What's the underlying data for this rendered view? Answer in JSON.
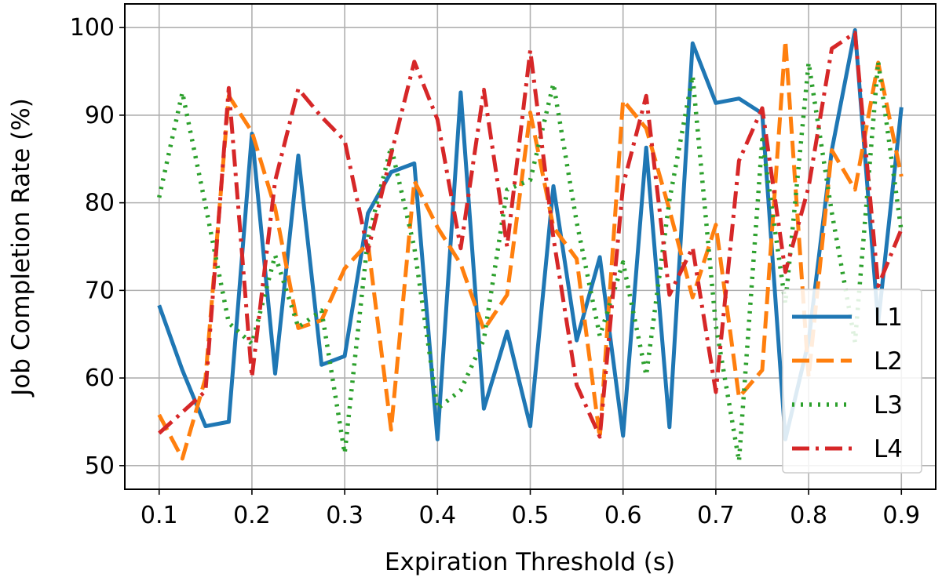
{
  "chart_data": {
    "type": "line",
    "xlabel": "Expiration Threshold (s)",
    "ylabel": "Job Completion Rate (%)",
    "xlim": [
      0.063,
      0.937
    ],
    "ylim": [
      47.3,
      102.7
    ],
    "xticks": [
      0.1,
      0.2,
      0.3,
      0.4,
      0.5,
      0.6,
      0.7,
      0.8,
      0.9
    ],
    "xtick_labels": [
      "0.1",
      "0.2",
      "0.3",
      "0.4",
      "0.5",
      "0.6",
      "0.7",
      "0.8",
      "0.9"
    ],
    "yticks": [
      50,
      60,
      70,
      80,
      90,
      100
    ],
    "ytick_labels": [
      "50",
      "60",
      "70",
      "80",
      "90",
      "100"
    ],
    "grid": true,
    "legend_position": "lower-right",
    "x": [
      0.1,
      0.125,
      0.15,
      0.175,
      0.2,
      0.225,
      0.25,
      0.275,
      0.3,
      0.325,
      0.35,
      0.375,
      0.4,
      0.425,
      0.45,
      0.475,
      0.5,
      0.525,
      0.55,
      0.575,
      0.6,
      0.625,
      0.65,
      0.675,
      0.7,
      0.725,
      0.75,
      0.775,
      0.8,
      0.825,
      0.85,
      0.875,
      0.9
    ],
    "series": [
      {
        "name": "L1",
        "color": "#1f77b4",
        "style": "solid",
        "values": [
          68.3,
          60.9,
          54.5,
          55.0,
          87.9,
          60.5,
          85.4,
          61.5,
          62.5,
          78.8,
          83.5,
          84.5,
          53.0,
          92.6,
          56.5,
          65.3,
          54.5,
          81.9,
          64.3,
          73.8,
          53.4,
          86.3,
          54.4,
          98.2,
          91.4,
          91.9,
          90.2,
          53.0,
          64.2,
          86.0,
          99.7,
          66.3,
          90.9
        ]
      },
      {
        "name": "L2",
        "color": "#ff7f0e",
        "style": "dashed",
        "values": [
          55.8,
          50.8,
          60.0,
          92.2,
          88.1,
          79.4,
          65.7,
          66.6,
          72.5,
          75.4,
          54.1,
          82.5,
          77.2,
          73.0,
          65.5,
          69.5,
          90.3,
          77.2,
          73.6,
          53.2,
          91.7,
          88.5,
          79.2,
          69.2,
          77.5,
          57.8,
          60.9,
          98.5,
          60.1,
          86.0,
          81.5,
          96.0,
          83.0
        ]
      },
      {
        "name": "L3",
        "color": "#2ca02c",
        "style": "dotted",
        "values": [
          80.6,
          92.6,
          79.7,
          66.3,
          63.9,
          74.0,
          65.8,
          67.7,
          51.4,
          75.9,
          86.4,
          74.9,
          56.5,
          58.6,
          64.4,
          81.5,
          82.6,
          93.6,
          77.8,
          64.8,
          73.2,
          60.3,
          80.3,
          94.5,
          66.0,
          50.5,
          87.2,
          68.5,
          96.0,
          78.9,
          64.1,
          96.1,
          76.7
        ]
      },
      {
        "name": "L4",
        "color": "#d62728",
        "style": "dashdot",
        "values": [
          53.7,
          56.1,
          58.5,
          93.1,
          60.1,
          82.5,
          93.0,
          89.8,
          87.1,
          74.5,
          85.5,
          96.1,
          89.5,
          74.8,
          92.9,
          75.0,
          97.4,
          76.0,
          59.2,
          53.3,
          82.0,
          92.2,
          69.5,
          74.9,
          58.4,
          84.8,
          90.8,
          72.1,
          81.8,
          97.6,
          99.4,
          70.5,
          77.0
        ]
      }
    ]
  }
}
